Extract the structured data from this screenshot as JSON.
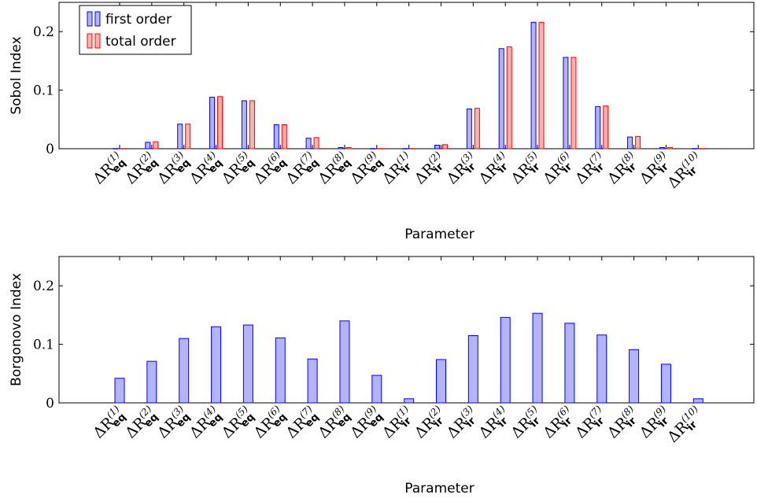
{
  "chart_data": [
    {
      "type": "bar",
      "ylabel": "Sobol Index",
      "xlabel": "Parameter",
      "ylim": [
        0,
        0.25
      ],
      "yticks": [
        0,
        0.1,
        0.2
      ],
      "ytick_labels": [
        "0",
        "0.1",
        "0.2"
      ],
      "categories": [
        {
          "base": "ΔR",
          "sup": "(1)",
          "sub": "eq"
        },
        {
          "base": "ΔR",
          "sup": "(2)",
          "sub": "eq"
        },
        {
          "base": "ΔR",
          "sup": "(3)",
          "sub": "eq"
        },
        {
          "base": "ΔR",
          "sup": "(4)",
          "sub": "eq"
        },
        {
          "base": "ΔR",
          "sup": "(5)",
          "sub": "eq"
        },
        {
          "base": "ΔR",
          "sup": "(6)",
          "sub": "eq"
        },
        {
          "base": "ΔR",
          "sup": "(7)",
          "sub": "eq"
        },
        {
          "base": "ΔR",
          "sup": "(8)",
          "sub": "eq"
        },
        {
          "base": "ΔR",
          "sup": "(9)",
          "sub": "eq"
        },
        {
          "base": "ΔR",
          "sup": "(1)",
          "sub": "ir"
        },
        {
          "base": "ΔR",
          "sup": "(2)",
          "sub": "ir"
        },
        {
          "base": "ΔR",
          "sup": "(3)",
          "sub": "ir"
        },
        {
          "base": "ΔR",
          "sup": "(4)",
          "sub": "ir"
        },
        {
          "base": "ΔR",
          "sup": "(5)",
          "sub": "ir"
        },
        {
          "base": "ΔR",
          "sup": "(6)",
          "sub": "ir"
        },
        {
          "base": "ΔR",
          "sup": "(7)",
          "sub": "ir"
        },
        {
          "base": "ΔR",
          "sup": "(8)",
          "sub": "ir"
        },
        {
          "base": "ΔR",
          "sup": "(9)",
          "sub": "ir"
        },
        {
          "base": "ΔR",
          "sup": "(10)",
          "sub": "ir"
        }
      ],
      "series": [
        {
          "name": "first order",
          "fill": "#b3b3ff",
          "stroke": "#0000ff",
          "values": [
            0.0003,
            0.011,
            0.042,
            0.088,
            0.082,
            0.041,
            0.018,
            0.002,
            0.0003,
            0.0003,
            0.006,
            0.068,
            0.171,
            0.216,
            0.156,
            0.072,
            0.02,
            0.002,
            0.0003
          ]
        },
        {
          "name": "total order",
          "fill": "#ffb3b3",
          "stroke": "#ff0000",
          "values": [
            0.0003,
            0.012,
            0.042,
            0.089,
            0.082,
            0.041,
            0.019,
            0.002,
            0.0003,
            0.0003,
            0.007,
            0.069,
            0.174,
            0.216,
            0.156,
            0.073,
            0.021,
            0.002,
            0.0003
          ]
        }
      ],
      "legend": "top-left"
    },
    {
      "type": "bar",
      "ylabel": "Borgonovo Index",
      "xlabel": "Parameter",
      "ylim": [
        0,
        0.25
      ],
      "yticks": [
        0,
        0.1,
        0.2
      ],
      "ytick_labels": [
        "0",
        "0.1",
        "0.2"
      ],
      "categories": [
        {
          "base": "ΔR",
          "sup": "(1)",
          "sub": "eq"
        },
        {
          "base": "ΔR",
          "sup": "(2)",
          "sub": "eq"
        },
        {
          "base": "ΔR",
          "sup": "(3)",
          "sub": "eq"
        },
        {
          "base": "ΔR",
          "sup": "(4)",
          "sub": "eq"
        },
        {
          "base": "ΔR",
          "sup": "(5)",
          "sub": "eq"
        },
        {
          "base": "ΔR",
          "sup": "(6)",
          "sub": "eq"
        },
        {
          "base": "ΔR",
          "sup": "(7)",
          "sub": "eq"
        },
        {
          "base": "ΔR",
          "sup": "(8)",
          "sub": "eq"
        },
        {
          "base": "ΔR",
          "sup": "(9)",
          "sub": "eq"
        },
        {
          "base": "ΔR",
          "sup": "(1)",
          "sub": "ir"
        },
        {
          "base": "ΔR",
          "sup": "(2)",
          "sub": "ir"
        },
        {
          "base": "ΔR",
          "sup": "(3)",
          "sub": "ir"
        },
        {
          "base": "ΔR",
          "sup": "(4)",
          "sub": "ir"
        },
        {
          "base": "ΔR",
          "sup": "(5)",
          "sub": "ir"
        },
        {
          "base": "ΔR",
          "sup": "(6)",
          "sub": "ir"
        },
        {
          "base": "ΔR",
          "sup": "(7)",
          "sub": "ir"
        },
        {
          "base": "ΔR",
          "sup": "(8)",
          "sub": "ir"
        },
        {
          "base": "ΔR",
          "sup": "(9)",
          "sub": "ir"
        },
        {
          "base": "ΔR",
          "sup": "(10)",
          "sub": "ir"
        }
      ],
      "series": [
        {
          "fill": "#b3b3ff",
          "stroke": "#0000ff",
          "values": [
            0.042,
            0.071,
            0.11,
            0.13,
            0.133,
            0.111,
            0.075,
            0.14,
            0.047,
            0.007,
            0.074,
            0.115,
            0.146,
            0.153,
            0.136,
            0.116,
            0.091,
            0.066,
            0.007
          ]
        }
      ]
    }
  ]
}
